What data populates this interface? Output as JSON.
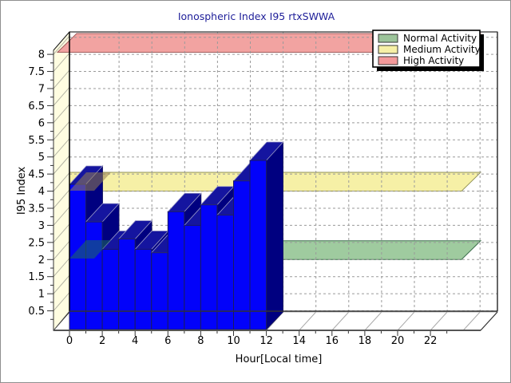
{
  "window": {
    "background": "#ffffff",
    "border_color": "#8f8f8f"
  },
  "chart_data": {
    "type": "bar",
    "title": "Ionospheric Index I95 rtxSWWA",
    "title_color": "#20209a",
    "xlabel": "Hour[Local time]",
    "ylabel": "I95 Index",
    "x": [
      0,
      1,
      2,
      3,
      4,
      5,
      6,
      7,
      8,
      9,
      10,
      11
    ],
    "values": [
      4.2,
      3.1,
      2.3,
      2.6,
      2.3,
      2.2,
      3.4,
      3.0,
      3.6,
      3.3,
      4.3,
      4.9
    ],
    "series_name": "I95 Index",
    "bar_style": "3d-column",
    "bar_colors": {
      "front": "#0202fa",
      "top": "#15159f",
      "side": "#000080",
      "edge": "#1b1b5e",
      "top_edge": "#9a9ac8"
    },
    "xlim": [
      0,
      24
    ],
    "ylim": [
      0,
      8.5
    ],
    "x_ticks": [
      0,
      2,
      4,
      6,
      8,
      10,
      12,
      14,
      16,
      18,
      20,
      22
    ],
    "y_ticks": [
      0.5,
      1,
      1.5,
      2,
      2.5,
      3,
      3.5,
      4,
      4.5,
      5,
      5.5,
      6,
      6.5,
      7,
      7.5,
      8
    ],
    "grid": "dashed-gray-both-axes",
    "wall_color": "#fffde1",
    "bands": [
      {
        "label": "Normal Activity",
        "from": 2,
        "to": 2.5,
        "fill": "#9fcb9f",
        "border": "#3c6e4c"
      },
      {
        "label": "Medium Activity",
        "from": 4,
        "to": 4.5,
        "fill": "#f6f0a6",
        "border": "#8f8f52"
      },
      {
        "label": "High Activity",
        "from": 8,
        "to": 8.5,
        "fill": "#f2a3a1",
        "border": "#a05b5b"
      }
    ],
    "legend": {
      "position": "top-right",
      "items": [
        {
          "label": "Normal Activity",
          "color": "#9cc49a"
        },
        {
          "label": "Medium Activity",
          "color": "#f6f0a6"
        },
        {
          "label": "High Activity",
          "color": "#f2999a"
        }
      ]
    }
  }
}
